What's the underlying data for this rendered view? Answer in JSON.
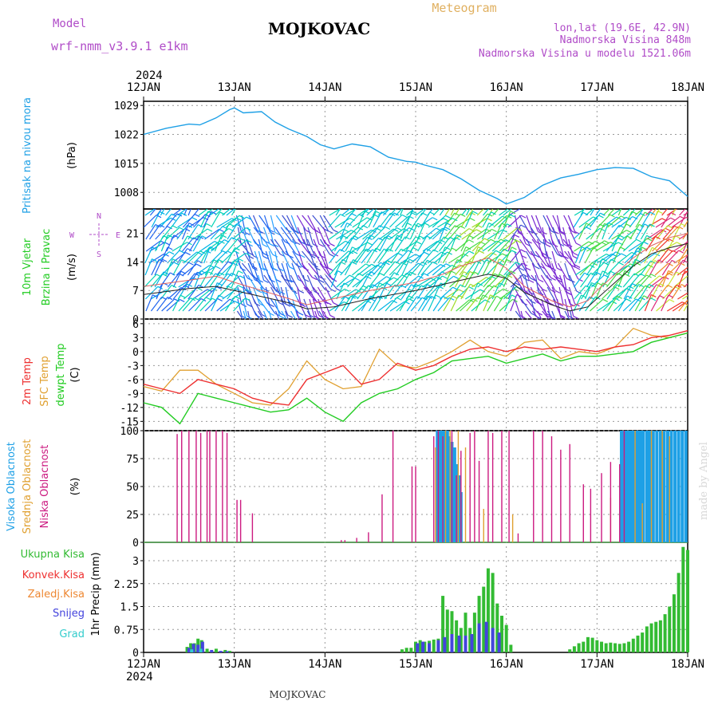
{
  "header": {
    "model_label": "Model",
    "model_name": "wrf-nmm_v3.9.1  e1km",
    "station": "MOJKOVAC",
    "product": "Meteogram",
    "coords": "lon,lat (19.6E, 42.9N)",
    "elevation": "Nadmorska Visina 848m",
    "model_elevation": "Nadmorska Visina u modelu 1521.06m",
    "footer_station": "MOJKOVAC",
    "credit": "made by Angel"
  },
  "time_axis": {
    "year": "2024",
    "labels": [
      "12JAN",
      "13JAN",
      "14JAN",
      "15JAN",
      "16JAN",
      "17JAN",
      "18JAN"
    ]
  },
  "colors": {
    "pressure": "#1ea0e6",
    "temp": "#ee3030",
    "sfc_temp": "#e0a030",
    "dewpt": "#22cc22",
    "wind_speed": "#202020",
    "gust": "#e06060",
    "high_cloud": "#1ea0e6",
    "mid_cloud": "#e0a030",
    "low_cloud": "#cc1a80",
    "total_precip": "#33bb33",
    "conv_precip": "#ee3030",
    "frozen_precip": "#ee8833",
    "snow": "#4444dd",
    "hail": "#33cccc"
  },
  "chart_data": [
    {
      "type": "line",
      "ylabel_1": "Pritisak na nivou mora",
      "ylabel_2": "(hPa)",
      "yticks": [
        "1029",
        "1022",
        "1015",
        "1008"
      ],
      "ylim": [
        1004,
        1030
      ],
      "grid": true,
      "x_days": [
        0,
        0.25,
        0.5,
        0.62,
        0.8,
        0.95,
        1.0,
        1.1,
        1.3,
        1.45,
        1.6,
        1.8,
        1.95,
        2.1,
        2.3,
        2.5,
        2.7,
        2.9,
        3.0,
        3.1,
        3.3,
        3.5,
        3.7,
        3.9,
        4.0,
        4.2,
        4.4,
        4.6,
        4.8,
        5.0,
        5.2,
        5.4,
        5.6,
        5.8,
        6.0
      ],
      "series": [
        {
          "values": [
            1022,
            1023.5,
            1024.5,
            1024.3,
            1026,
            1028,
            1028.4,
            1027.2,
            1027.5,
            1025,
            1023.3,
            1021.5,
            1019.5,
            1018.5,
            1019.7,
            1019,
            1016.5,
            1015.5,
            1015.3,
            1014.6,
            1013.5,
            1011.3,
            1008.5,
            1006.5,
            1005.2,
            1006.8,
            1009.7,
            1011.5,
            1012.4,
            1013.5,
            1014,
            1013.8,
            1011.8,
            1010.8,
            1007
          ]
        }
      ]
    },
    {
      "type": "line",
      "ylabel_1": "10m Vjetar",
      "ylabel_2": "Brzina i Pravac",
      "ylabel_3": "(m/s)",
      "yticks": [
        "21",
        "14",
        "7",
        "0"
      ],
      "ylim": [
        0,
        27
      ],
      "compass": [
        "N",
        "E",
        "S",
        "W"
      ],
      "x_days": [
        0,
        0.5,
        0.8,
        1.0,
        1.3,
        1.6,
        1.8,
        2.1,
        2.5,
        3.0,
        3.3,
        3.5,
        3.8,
        4.0,
        4.2,
        4.5,
        4.7,
        4.9,
        5.0,
        5.2,
        5.4,
        5.6,
        5.8,
        6.0
      ],
      "series": [
        {
          "name": "wind_speed",
          "values": [
            6,
            7.5,
            8,
            7,
            5.5,
            4,
            2.5,
            3,
            5,
            7,
            8.5,
            9.5,
            11,
            10,
            6.5,
            3.5,
            2,
            3,
            5,
            9,
            13,
            16,
            17.5,
            18.5
          ]
        },
        {
          "name": "gust",
          "values": [
            8,
            9.5,
            10.5,
            9,
            7,
            5,
            3.5,
            5,
            7,
            9,
            11,
            13,
            15,
            12.5,
            8,
            4.5,
            3,
            4.5,
            7,
            11,
            15,
            18,
            20,
            21
          ]
        }
      ]
    },
    {
      "type": "line",
      "ylabel_1": "2m Temp",
      "ylabel_2": "SFC Temp",
      "ylabel_3": "dewpt Temp",
      "ylabel_4": "(C)",
      "yticks": [
        "6",
        "3",
        "0",
        "-3",
        "-6",
        "-9",
        "-12",
        "-15"
      ],
      "ylim": [
        -17,
        7
      ],
      "x_days": [
        0,
        0.2,
        0.4,
        0.6,
        0.8,
        1.0,
        1.2,
        1.4,
        1.6,
        1.8,
        2.0,
        2.2,
        2.4,
        2.6,
        2.8,
        3.0,
        3.2,
        3.4,
        3.6,
        3.8,
        4.0,
        4.2,
        4.4,
        4.6,
        4.8,
        5.0,
        5.2,
        5.4,
        5.6,
        5.8,
        6.0
      ],
      "series": [
        {
          "name": "2m Temp",
          "values": [
            -7,
            -8,
            -9,
            -6,
            -7,
            -8,
            -10,
            -11,
            -11.5,
            -6,
            -4.5,
            -3,
            -7,
            -6,
            -2.5,
            -4,
            -3,
            -1,
            0.5,
            1,
            0,
            1,
            0.5,
            1,
            0.5,
            0,
            1,
            1.5,
            3,
            3.5,
            4.5
          ]
        },
        {
          "name": "SFC Temp",
          "values": [
            -7.5,
            -8.5,
            -4,
            -4,
            -7,
            -9,
            -11,
            -11.5,
            -8,
            -2,
            -6,
            -8,
            -7.5,
            0.5,
            -3,
            -3.5,
            -2,
            0,
            2.5,
            0,
            -1,
            2,
            2.5,
            -1.5,
            0,
            -0.5,
            1,
            5,
            3.5,
            3,
            4
          ]
        },
        {
          "name": "dewpt Temp",
          "values": [
            -11,
            -12,
            -15.5,
            -9,
            -10,
            -11,
            -12,
            -13,
            -12.5,
            -10,
            -13,
            -15,
            -11,
            -9,
            -8,
            -6,
            -4.5,
            -2,
            -1.5,
            -1,
            -2.5,
            -1.5,
            -0.5,
            -2,
            -1,
            -1,
            -0.5,
            0,
            2,
            3,
            4
          ]
        }
      ]
    },
    {
      "type": "bar",
      "ylabel_1": "Visoka Oblacnost",
      "ylabel_2": "Srednja Oblacnost",
      "ylabel_3": "Niska Oblacnost",
      "ylabel_4": "(%)",
      "yticks": [
        "100",
        "75",
        "50",
        "25",
        "0"
      ],
      "ylim": [
        0,
        100
      ],
      "series": [
        {
          "name": "Niska Oblacnost",
          "x_days": [
            0.37,
            0.42,
            0.5,
            0.58,
            0.63,
            0.7,
            0.73,
            0.8,
            0.87,
            0.92,
            1.03,
            1.07,
            1.2,
            2.18,
            2.22,
            2.35,
            2.48,
            2.63,
            2.75,
            2.96,
            3.0,
            3.2,
            3.25,
            3.3,
            3.4,
            3.45,
            3.5,
            3.6,
            3.65,
            3.7,
            3.8,
            3.85,
            3.95,
            4.03,
            4.13,
            4.3,
            4.4,
            4.5,
            4.6,
            4.7,
            4.85,
            4.93,
            5.05,
            5.15,
            5.25,
            5.3
          ],
          "values": [
            97,
            100,
            100,
            100,
            98,
            100,
            100,
            100,
            100,
            98,
            38,
            38,
            26,
            2,
            2,
            4,
            9,
            43,
            100,
            68,
            68,
            95,
            100,
            95,
            100,
            60,
            82,
            98,
            100,
            73,
            100,
            98,
            100,
            100,
            8,
            100,
            100,
            95,
            83,
            88,
            52,
            48,
            62,
            72,
            70,
            100
          ]
        },
        {
          "name": "Srednja Oblacnost",
          "x_days": [
            3.22,
            3.33,
            3.38,
            3.47,
            3.55,
            3.75,
            4.07,
            5.15,
            5.42,
            5.5,
            5.6,
            5.72,
            5.8
          ],
          "values": [
            85,
            100,
            100,
            100,
            85,
            30,
            25,
            40,
            100,
            35,
            100,
            100,
            95
          ]
        },
        {
          "name": "Visoka Oblacnost",
          "x_days": [
            3.24,
            3.26,
            3.28,
            3.3,
            3.32,
            3.35,
            3.37,
            3.4,
            3.43,
            3.45,
            3.48,
            3.5,
            5.27,
            5.3,
            5.33,
            5.36,
            5.39,
            5.42,
            5.45,
            5.48,
            5.51,
            5.55,
            5.58,
            5.62,
            5.66,
            5.7,
            5.74,
            5.78,
            5.82,
            5.86,
            5.9,
            5.94,
            5.98
          ],
          "values": [
            100,
            100,
            100,
            100,
            100,
            100,
            95,
            90,
            85,
            70,
            60,
            45,
            100,
            100,
            100,
            100,
            100,
            100,
            100,
            100,
            100,
            100,
            100,
            100,
            100,
            100,
            100,
            100,
            100,
            100,
            100,
            100,
            100
          ]
        }
      ]
    },
    {
      "type": "bar",
      "legend": [
        "Ukupna Kisa",
        "Konvek.Kisa",
        "Zaledj.Kisa",
        "Snijeg",
        "Grad"
      ],
      "ylabel": "1hr Precip (mm)",
      "yticks": [
        "3",
        "2.25",
        "1.5",
        "0.75",
        "0"
      ],
      "ylim": [
        0,
        3.6
      ],
      "series": [
        {
          "name": "Ukupna Kisa",
          "x_days": [
            0.48,
            0.52,
            0.56,
            0.6,
            0.64,
            0.7,
            0.8,
            0.9,
            0.95,
            2.85,
            2.9,
            2.95,
            3.0,
            3.05,
            3.1,
            3.15,
            3.2,
            3.25,
            3.3,
            3.35,
            3.4,
            3.45,
            3.5,
            3.55,
            3.6,
            3.65,
            3.7,
            3.75,
            3.8,
            3.85,
            3.9,
            3.95,
            4.0,
            4.05,
            4.7,
            4.75,
            4.8,
            4.85,
            4.9,
            4.95,
            5.0,
            5.05,
            5.1,
            5.15,
            5.2,
            5.25,
            5.3,
            5.35,
            5.4,
            5.45,
            5.5,
            5.55,
            5.6,
            5.65,
            5.7,
            5.75,
            5.8,
            5.85,
            5.9,
            5.95,
            6.0
          ],
          "values": [
            0.18,
            0.3,
            0.3,
            0.45,
            0.4,
            0.12,
            0.12,
            0.08,
            0.05,
            0.1,
            0.15,
            0.15,
            0.35,
            0.4,
            0.35,
            0.38,
            0.42,
            0.45,
            1.85,
            1.4,
            1.35,
            1.05,
            0.8,
            1.3,
            0.8,
            1.3,
            1.85,
            2.15,
            2.75,
            2.6,
            1.6,
            1.2,
            0.9,
            0.25,
            0.1,
            0.2,
            0.3,
            0.35,
            0.5,
            0.48,
            0.4,
            0.35,
            0.3,
            0.32,
            0.3,
            0.28,
            0.3,
            0.35,
            0.45,
            0.55,
            0.65,
            0.85,
            0.95,
            1.0,
            1.05,
            1.25,
            1.5,
            1.9,
            2.6,
            3.45,
            3.35
          ]
        },
        {
          "name": "Snijeg",
          "x_days": [
            0.5,
            0.55,
            0.6,
            0.65,
            0.75,
            0.85,
            0.92,
            3.02,
            3.08,
            3.15,
            3.25,
            3.32,
            3.4,
            3.48,
            3.55,
            3.62,
            3.7,
            3.78,
            3.85,
            3.92
          ],
          "values": [
            0.15,
            0.28,
            0.25,
            0.35,
            0.08,
            0.05,
            0.04,
            0.3,
            0.35,
            0.3,
            0.4,
            0.5,
            0.6,
            0.55,
            0.55,
            0.6,
            0.95,
            1.0,
            0.8,
            0.65
          ]
        },
        {
          "name": "Grad",
          "x_days": [
            0.53,
            0.63
          ],
          "values": [
            0.1,
            0.12
          ]
        }
      ]
    }
  ]
}
